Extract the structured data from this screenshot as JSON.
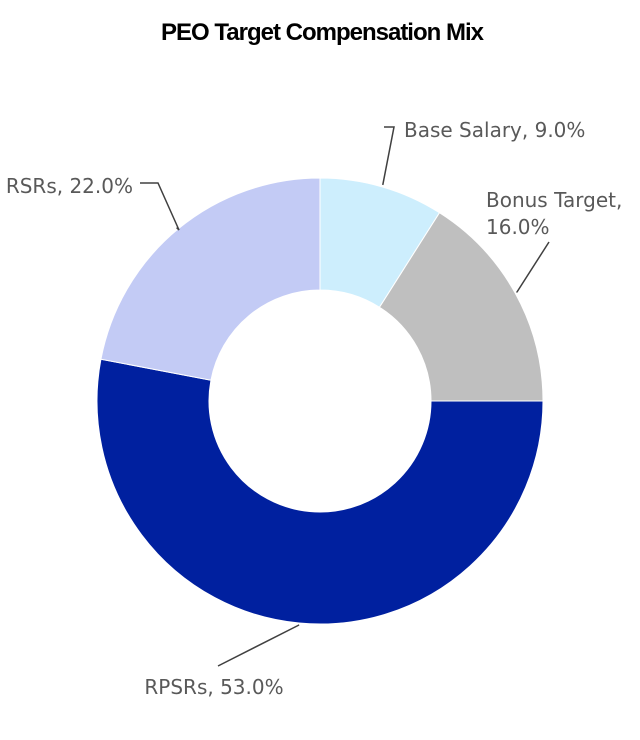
{
  "chart_data": {
    "type": "pie",
    "title": "PEO Target Compensation Mix",
    "hole": "donut",
    "slices": [
      {
        "name": "Base Salary",
        "value": 9.0,
        "color": "#cdeefd",
        "label_lines": [
          "Base Salary, 9.0%"
        ]
      },
      {
        "name": "Bonus Target",
        "value": 16.0,
        "color": "#bfbfbf",
        "label_lines": [
          "Bonus Target,",
          "16.0%"
        ]
      },
      {
        "name": "RPSRs",
        "value": 53.0,
        "color": "#00209f",
        "label_lines": [
          "RPSRs, 53.0%"
        ]
      },
      {
        "name": "RSRs",
        "value": 22.0,
        "color": "#c3cbf5",
        "label_lines": [
          "RSRs, 22.0%"
        ]
      }
    ]
  }
}
